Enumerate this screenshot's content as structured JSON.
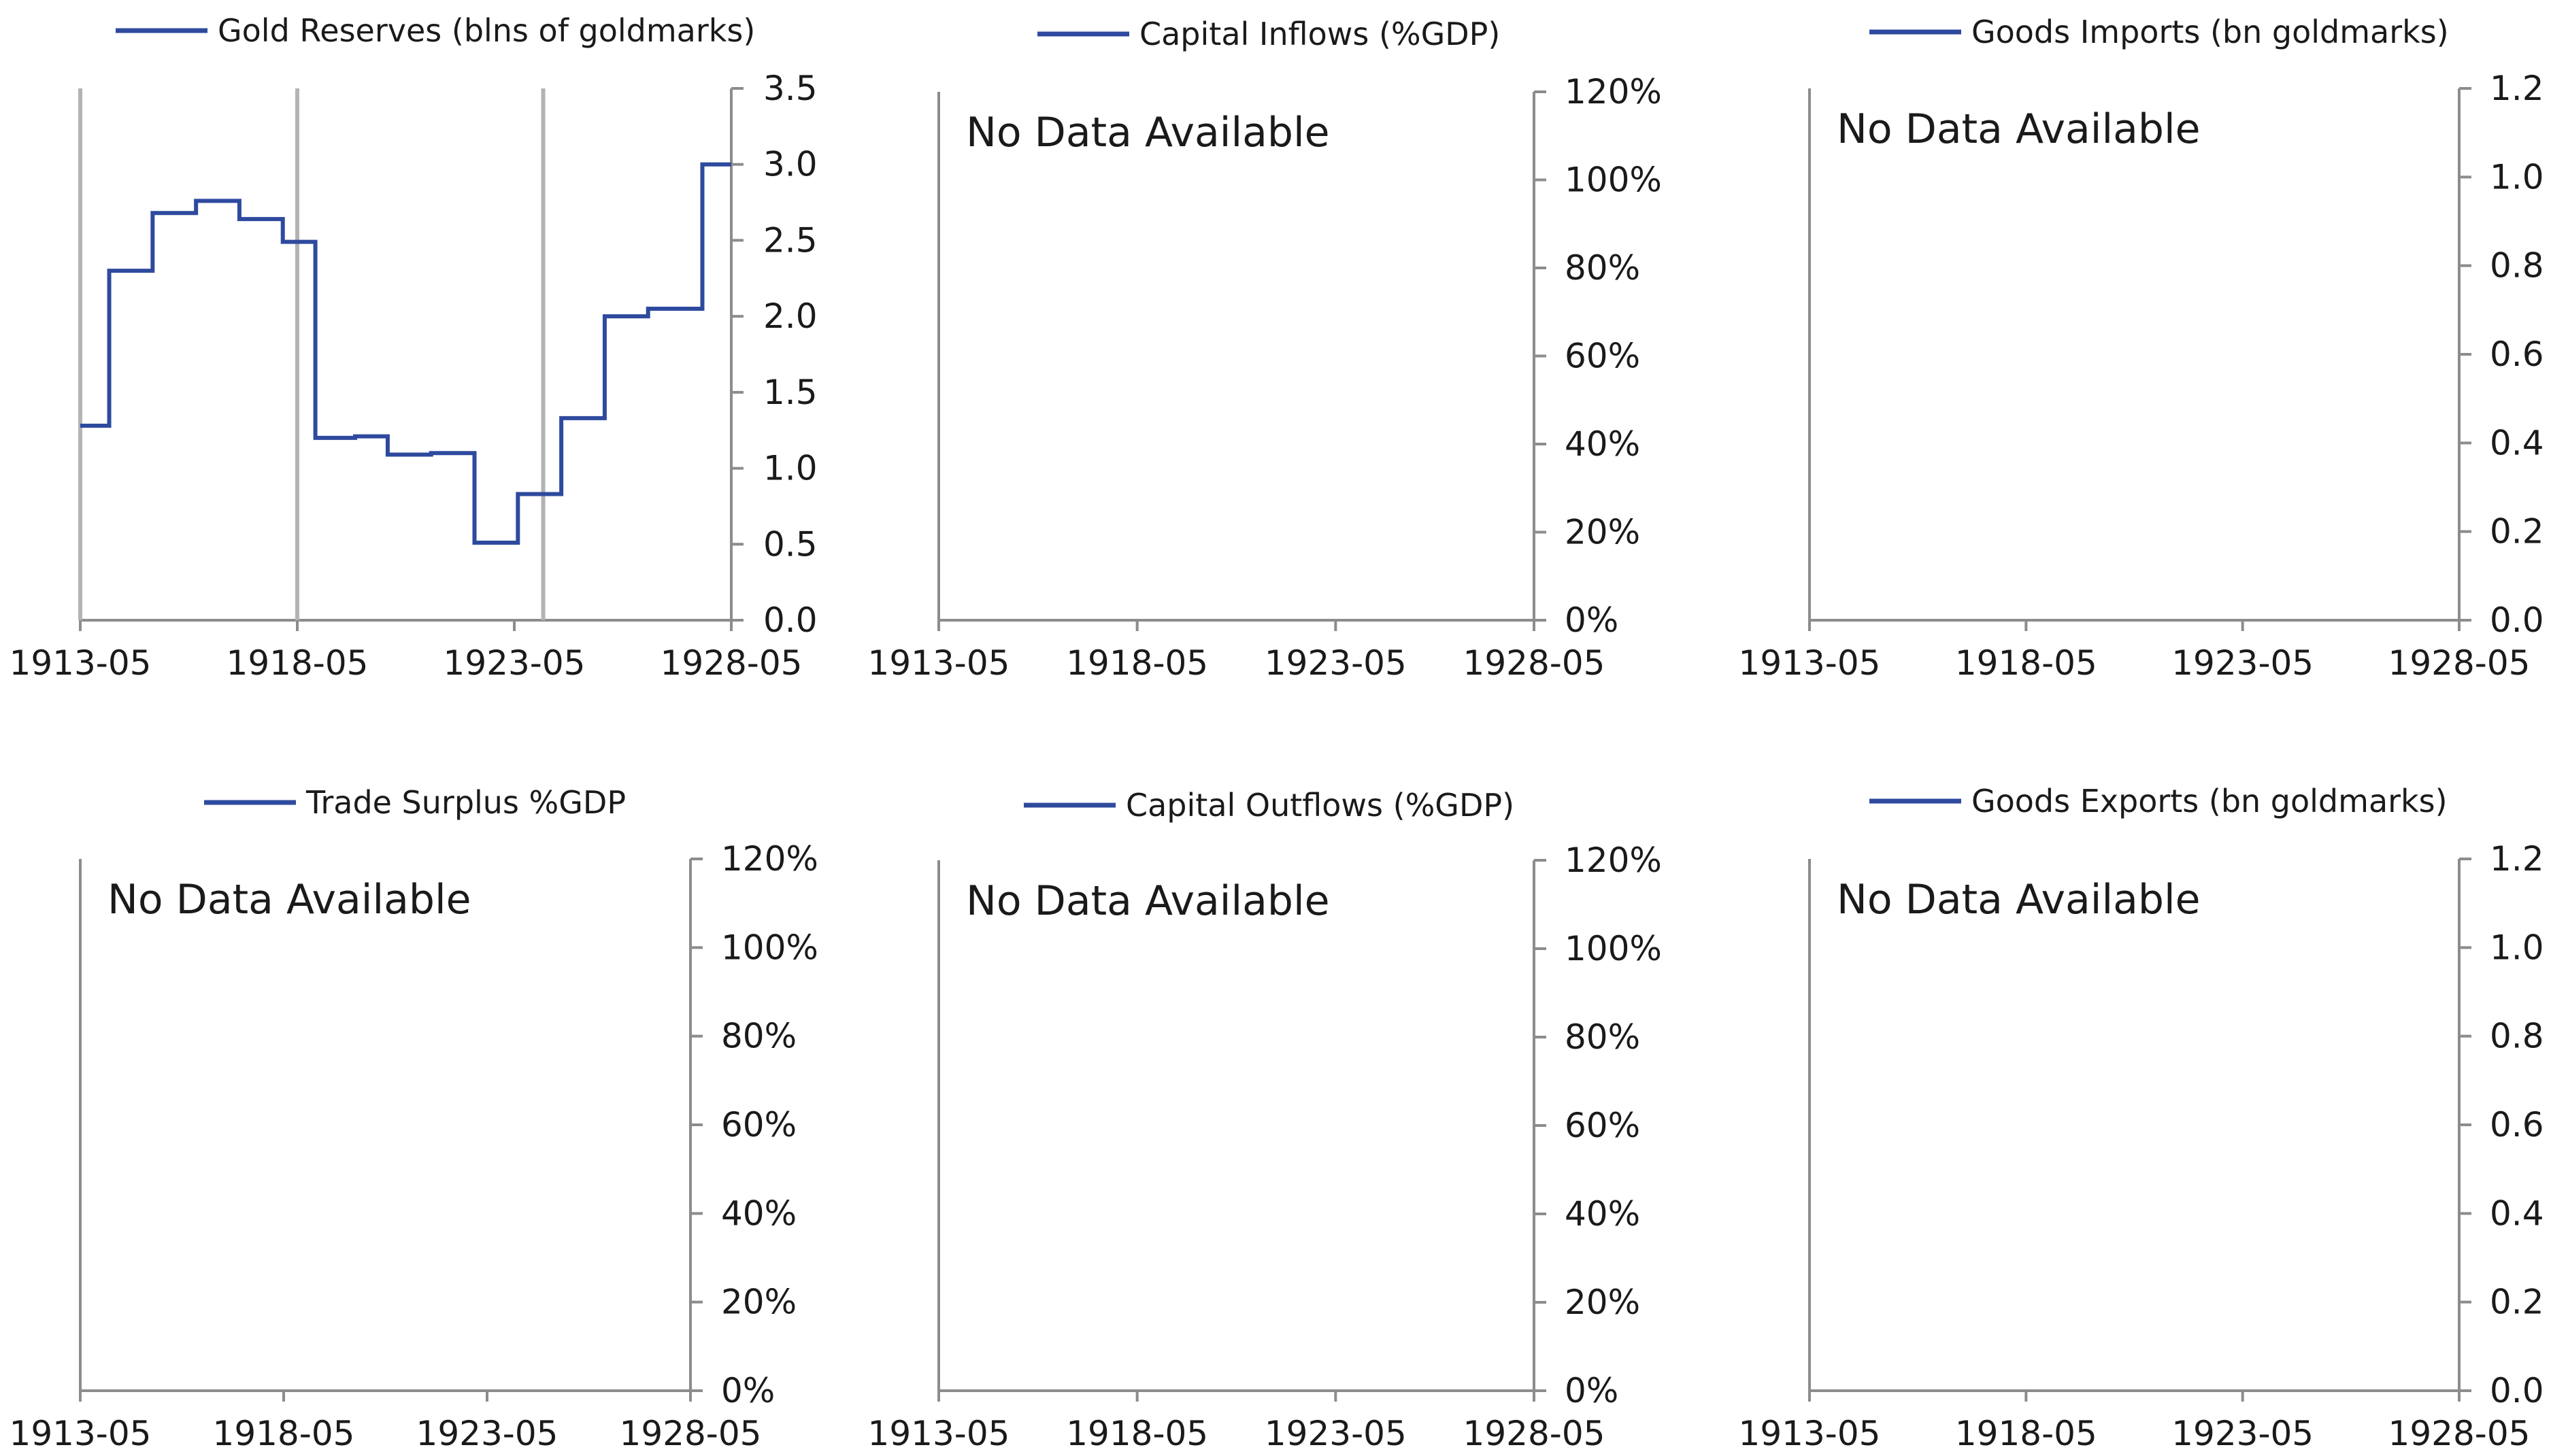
{
  "chart_data": [
    {
      "type": "line",
      "title": "",
      "series": [
        {
          "name": "Gold Reserves (blns of goldmarks)",
          "color": "#2e4a9e",
          "step": true,
          "points": [
            [
              "1913-05",
              1.28
            ],
            [
              "1914-01",
              2.3
            ],
            [
              "1915-01",
              2.68
            ],
            [
              "1916-01",
              2.76
            ],
            [
              "1917-01",
              2.64
            ],
            [
              "1918-01",
              2.49
            ],
            [
              "1918-10",
              1.2
            ],
            [
              "1919-09",
              1.21
            ],
            [
              "1920-06",
              1.09
            ],
            [
              "1921-06",
              1.1
            ],
            [
              "1922-06",
              0.51
            ],
            [
              "1923-06",
              0.83
            ],
            [
              "1924-06",
              1.33
            ],
            [
              "1925-06",
              2.0
            ],
            [
              "1926-06",
              2.05
            ],
            [
              "1927-09",
              3.0
            ],
            [
              "1928-05",
              3.0
            ]
          ]
        }
      ],
      "event_lines": [
        "1913-05",
        "1918-05",
        "1924-01"
      ],
      "x_ticks": [
        "1913-05",
        "1918-05",
        "1923-05",
        "1928-05"
      ],
      "xlim": [
        "1913-05",
        "1928-05"
      ],
      "y_ticks": [
        "0.0",
        "0.5",
        "1.0",
        "1.5",
        "2.0",
        "2.5",
        "3.0",
        "3.5"
      ],
      "ylim": [
        0,
        3.5
      ],
      "no_data_text": ""
    },
    {
      "type": "line",
      "title": "",
      "series": [
        {
          "name": "Capital Inflows (%GDP)",
          "color": "#2e4a9e",
          "points": []
        }
      ],
      "event_lines": [],
      "x_ticks": [
        "1913-05",
        "1918-05",
        "1923-05",
        "1928-05"
      ],
      "xlim": [
        "1913-05",
        "1928-05"
      ],
      "y_ticks": [
        "0%",
        "20%",
        "40%",
        "60%",
        "80%",
        "100%",
        "120%"
      ],
      "ylim": [
        0,
        1.2
      ],
      "no_data_text": "No Data Available"
    },
    {
      "type": "line",
      "title": "",
      "series": [
        {
          "name": "Goods Imports (bn goldmarks)",
          "color": "#2e4a9e",
          "points": []
        }
      ],
      "event_lines": [],
      "x_ticks": [
        "1913-05",
        "1918-05",
        "1923-05",
        "1928-05"
      ],
      "xlim": [
        "1913-05",
        "1928-05"
      ],
      "y_ticks": [
        "0.0",
        "0.2",
        "0.4",
        "0.6",
        "0.8",
        "1.0",
        "1.2"
      ],
      "ylim": [
        0,
        1.2
      ],
      "no_data_text": "No Data Available"
    },
    {
      "type": "line",
      "title": "",
      "series": [
        {
          "name": "Trade Surplus %GDP",
          "color": "#2e4a9e",
          "points": []
        }
      ],
      "event_lines": [],
      "x_ticks": [
        "1913-05",
        "1918-05",
        "1923-05",
        "1928-05"
      ],
      "xlim": [
        "1913-05",
        "1928-05"
      ],
      "y_ticks": [
        "0%",
        "20%",
        "40%",
        "60%",
        "80%",
        "100%",
        "120%"
      ],
      "ylim": [
        0,
        1.2
      ],
      "no_data_text": "No Data Available"
    },
    {
      "type": "line",
      "title": "",
      "series": [
        {
          "name": "Capital Outflows (%GDP)",
          "color": "#2e4a9e",
          "points": []
        }
      ],
      "event_lines": [],
      "x_ticks": [
        "1913-05",
        "1918-05",
        "1923-05",
        "1928-05"
      ],
      "xlim": [
        "1913-05",
        "1928-05"
      ],
      "y_ticks": [
        "0%",
        "20%",
        "40%",
        "60%",
        "80%",
        "100%",
        "120%"
      ],
      "ylim": [
        0,
        1.2
      ],
      "no_data_text": "No Data Available"
    },
    {
      "type": "line",
      "title": "",
      "series": [
        {
          "name": "Goods Exports (bn goldmarks)",
          "color": "#2e4a9e",
          "points": []
        }
      ],
      "event_lines": [],
      "x_ticks": [
        "1913-05",
        "1918-05",
        "1923-05",
        "1928-05"
      ],
      "xlim": [
        "1913-05",
        "1928-05"
      ],
      "y_ticks": [
        "0.0",
        "0.2",
        "0.4",
        "0.6",
        "0.8",
        "1.0",
        "1.2"
      ],
      "ylim": [
        0,
        1.2
      ],
      "no_data_text": "No Data Available"
    }
  ]
}
